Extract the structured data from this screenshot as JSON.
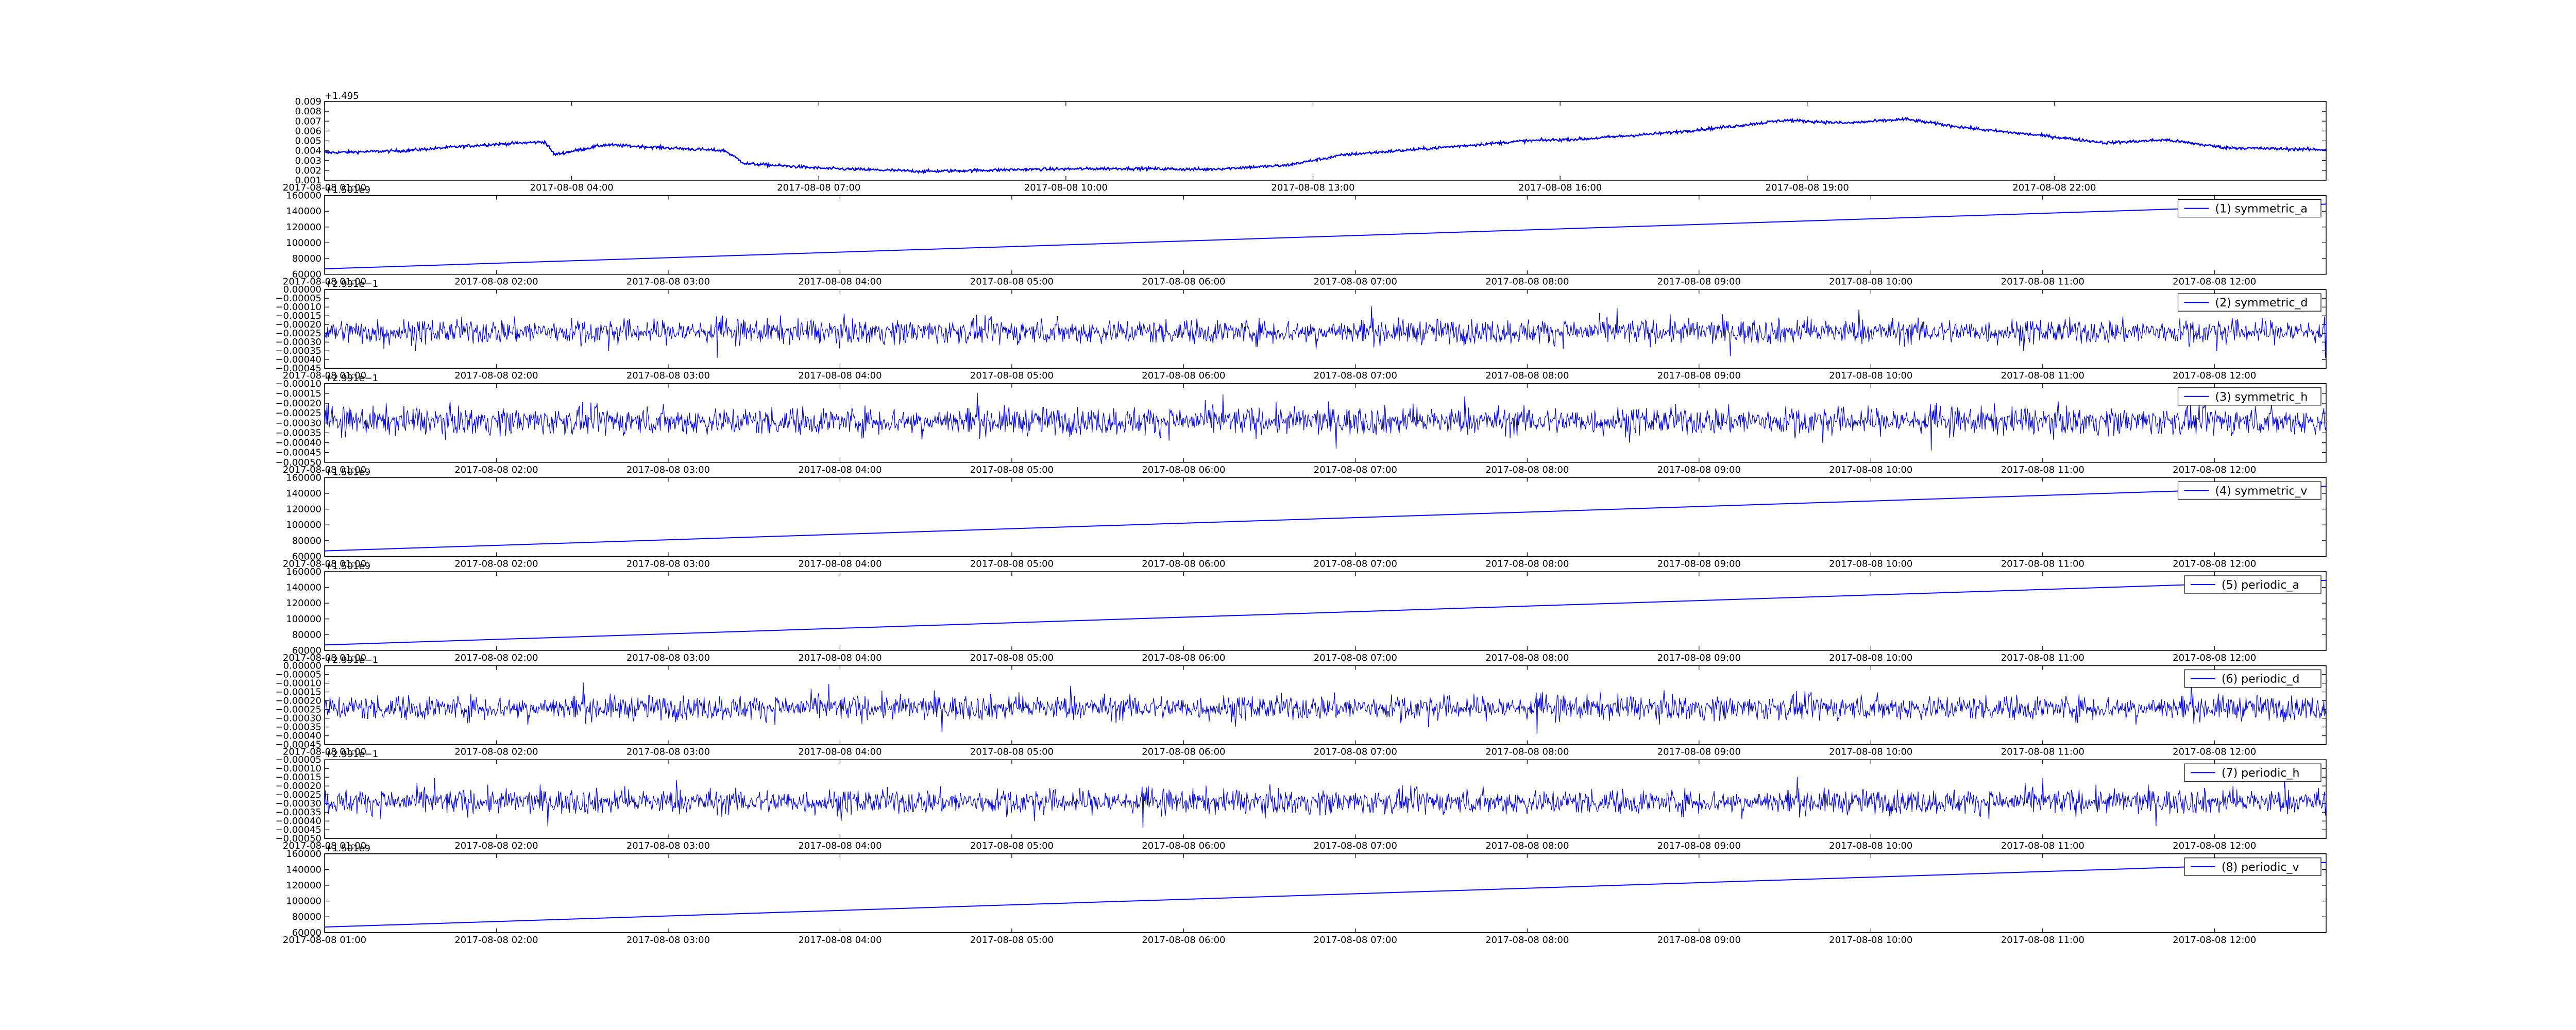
{
  "chart_data": [
    {
      "type": "line",
      "panel": 0,
      "series": [
        {
          "color": "#0000ff",
          "style": "noisy-walk",
          "y_mid": 0.0047,
          "y_spread": 0.0003
        }
      ],
      "ylim": [
        0.001,
        0.009
      ],
      "ytick_labels": [
        "0.001",
        "0.002",
        "0.003",
        "0.004",
        "0.005",
        "0.006",
        "0.007",
        "0.008",
        "0.009"
      ],
      "y_offset": "+1.495",
      "xtick_labels": [
        "2017-08-08 01:00",
        "2017-08-08 04:00",
        "2017-08-08 07:00",
        "2017-08-08 10:00",
        "2017-08-08 13:00",
        "2017-08-08 16:00",
        "2017-08-08 19:00",
        "2017-08-08 22:00"
      ],
      "trend": [
        [
          0,
          0.0038
        ],
        [
          0.04,
          0.004
        ],
        [
          0.08,
          0.0046
        ],
        [
          0.11,
          0.0049
        ],
        [
          0.115,
          0.0036
        ],
        [
          0.14,
          0.0046
        ],
        [
          0.18,
          0.0042
        ],
        [
          0.2,
          0.004
        ],
        [
          0.21,
          0.0027
        ],
        [
          0.25,
          0.0022
        ],
        [
          0.3,
          0.0019
        ],
        [
          0.35,
          0.0021
        ],
        [
          0.4,
          0.0022
        ],
        [
          0.44,
          0.0021
        ],
        [
          0.48,
          0.0025
        ],
        [
          0.51,
          0.0036
        ],
        [
          0.55,
          0.0042
        ],
        [
          0.6,
          0.005
        ],
        [
          0.63,
          0.0052
        ],
        [
          0.67,
          0.0058
        ],
        [
          0.7,
          0.0064
        ],
        [
          0.73,
          0.0071
        ],
        [
          0.76,
          0.0068
        ],
        [
          0.79,
          0.0072
        ],
        [
          0.81,
          0.0066
        ],
        [
          0.83,
          0.0061
        ],
        [
          0.86,
          0.0055
        ],
        [
          0.89,
          0.0048
        ],
        [
          0.92,
          0.0051
        ],
        [
          0.95,
          0.0043
        ],
        [
          1.0,
          0.0041
        ]
      ]
    },
    {
      "type": "line",
      "panel": 1,
      "legend": "(1) symmetric_a",
      "series": [
        {
          "color": "#0000ff",
          "style": "linear",
          "y_start": 67000,
          "y_end": 149000
        }
      ],
      "ylim": [
        60000,
        160000
      ],
      "ytick_labels": [
        "60000",
        "80000",
        "100000",
        "120000",
        "140000",
        "160000"
      ],
      "y_offset": "+1.501e9",
      "xtick_labels": [
        "2017-08-08 01:00",
        "2017-08-08 02:00",
        "2017-08-08 03:00",
        "2017-08-08 04:00",
        "2017-08-08 05:00",
        "2017-08-08 06:00",
        "2017-08-08 07:00",
        "2017-08-08 08:00",
        "2017-08-08 09:00",
        "2017-08-08 10:00",
        "2017-08-08 11:00",
        "2017-08-08 12:00"
      ]
    },
    {
      "type": "line",
      "panel": 2,
      "legend": "(2) symmetric_d",
      "series": [
        {
          "color": "#0000ff",
          "style": "noise",
          "y_mid": -0.00024,
          "y_spread": 5e-05
        }
      ],
      "ylim": [
        -0.00045,
        0.0
      ],
      "ytick_labels": [
        "−0.00045",
        "−0.00040",
        "−0.00035",
        "−0.00030",
        "−0.00025",
        "−0.00020",
        "−0.00015",
        "−0.00010",
        "−0.00005",
        "0.00000"
      ],
      "y_offset": "+2.991e−1",
      "xtick_labels": [
        "2017-08-08 01:00",
        "2017-08-08 02:00",
        "2017-08-08 03:00",
        "2017-08-08 04:00",
        "2017-08-08 05:00",
        "2017-08-08 06:00",
        "2017-08-08 07:00",
        "2017-08-08 08:00",
        "2017-08-08 09:00",
        "2017-08-08 10:00",
        "2017-08-08 11:00",
        "2017-08-08 12:00"
      ]
    },
    {
      "type": "line",
      "panel": 3,
      "legend": "(3) symmetric_h",
      "series": [
        {
          "color": "#0000ff",
          "style": "noise",
          "y_mid": -0.00029,
          "y_spread": 5e-05
        }
      ],
      "ylim": [
        -0.0005,
        -0.0001
      ],
      "ytick_labels": [
        "−0.00050",
        "−0.00045",
        "−0.00040",
        "−0.00035",
        "−0.00030",
        "−0.00025",
        "−0.00020",
        "−0.00015",
        "−0.00010"
      ],
      "y_offset": "+2.991e−1",
      "xtick_labels": [
        "2017-08-08 01:00",
        "2017-08-08 02:00",
        "2017-08-08 03:00",
        "2017-08-08 04:00",
        "2017-08-08 05:00",
        "2017-08-08 06:00",
        "2017-08-08 07:00",
        "2017-08-08 08:00",
        "2017-08-08 09:00",
        "2017-08-08 10:00",
        "2017-08-08 11:00",
        "2017-08-08 12:00"
      ]
    },
    {
      "type": "line",
      "panel": 4,
      "legend": "(4) symmetric_v",
      "series": [
        {
          "color": "#0000ff",
          "style": "linear",
          "y_start": 67000,
          "y_end": 149000
        }
      ],
      "ylim": [
        60000,
        160000
      ],
      "ytick_labels": [
        "60000",
        "80000",
        "100000",
        "120000",
        "140000",
        "160000"
      ],
      "y_offset": "+1.501e9",
      "xtick_labels": [
        "2017-08-08 01:00",
        "2017-08-08 02:00",
        "2017-08-08 03:00",
        "2017-08-08 04:00",
        "2017-08-08 05:00",
        "2017-08-08 06:00",
        "2017-08-08 07:00",
        "2017-08-08 08:00",
        "2017-08-08 09:00",
        "2017-08-08 10:00",
        "2017-08-08 11:00",
        "2017-08-08 12:00"
      ]
    },
    {
      "type": "line",
      "panel": 5,
      "legend": "(5) periodic_a",
      "series": [
        {
          "color": "#0000ff",
          "style": "linear",
          "y_start": 67000,
          "y_end": 149000
        }
      ],
      "ylim": [
        60000,
        160000
      ],
      "ytick_labels": [
        "60000",
        "80000",
        "100000",
        "120000",
        "140000",
        "160000"
      ],
      "y_offset": "+1.501e9",
      "xtick_labels": [
        "2017-08-08 01:00",
        "2017-08-08 02:00",
        "2017-08-08 03:00",
        "2017-08-08 04:00",
        "2017-08-08 05:00",
        "2017-08-08 06:00",
        "2017-08-08 07:00",
        "2017-08-08 08:00",
        "2017-08-08 09:00",
        "2017-08-08 10:00",
        "2017-08-08 11:00",
        "2017-08-08 12:00"
      ]
    },
    {
      "type": "line",
      "panel": 6,
      "legend": "(6) periodic_d",
      "series": [
        {
          "color": "#0000ff",
          "style": "noise",
          "y_mid": -0.00024,
          "y_spread": 5e-05
        }
      ],
      "ylim": [
        -0.00045,
        0.0
      ],
      "ytick_labels": [
        "−0.00045",
        "−0.00040",
        "−0.00035",
        "−0.00030",
        "−0.00025",
        "−0.00020",
        "−0.00015",
        "−0.00010",
        "−0.00005",
        "0.00000"
      ],
      "y_offset": "+2.991e−1",
      "xtick_labels": [
        "2017-08-08 01:00",
        "2017-08-08 02:00",
        "2017-08-08 03:00",
        "2017-08-08 04:00",
        "2017-08-08 05:00",
        "2017-08-08 06:00",
        "2017-08-08 07:00",
        "2017-08-08 08:00",
        "2017-08-08 09:00",
        "2017-08-08 10:00",
        "2017-08-08 11:00",
        "2017-08-08 12:00"
      ]
    },
    {
      "type": "line",
      "panel": 7,
      "legend": "(7) periodic_h",
      "series": [
        {
          "color": "#0000ff",
          "style": "noise",
          "y_mid": -0.00029,
          "y_spread": 5e-05
        }
      ],
      "ylim": [
        -0.0005,
        -5e-05
      ],
      "ytick_labels": [
        "−0.00050",
        "−0.00045",
        "−0.00040",
        "−0.00035",
        "−0.00030",
        "−0.00025",
        "−0.00020",
        "−0.00015",
        "−0.00010",
        "−0.00005"
      ],
      "y_offset": "+2.991e−1",
      "xtick_labels": [
        "2017-08-08 01:00",
        "2017-08-08 02:00",
        "2017-08-08 03:00",
        "2017-08-08 04:00",
        "2017-08-08 05:00",
        "2017-08-08 06:00",
        "2017-08-08 07:00",
        "2017-08-08 08:00",
        "2017-08-08 09:00",
        "2017-08-08 10:00",
        "2017-08-08 11:00",
        "2017-08-08 12:00"
      ]
    },
    {
      "type": "line",
      "panel": 8,
      "legend": "(8) periodic_v",
      "series": [
        {
          "color": "#0000ff",
          "style": "linear",
          "y_start": 67000,
          "y_end": 149000
        }
      ],
      "ylim": [
        60000,
        160000
      ],
      "ytick_labels": [
        "60000",
        "80000",
        "100000",
        "120000",
        "140000",
        "160000"
      ],
      "y_offset": "+1.501e9",
      "xtick_labels": [
        "2017-08-08 01:00",
        "2017-08-08 02:00",
        "2017-08-08 03:00",
        "2017-08-08 04:00",
        "2017-08-08 05:00",
        "2017-08-08 06:00",
        "2017-08-08 07:00",
        "2017-08-08 08:00",
        "2017-08-08 09:00",
        "2017-08-08 10:00",
        "2017-08-08 11:00",
        "2017-08-08 12:00"
      ]
    }
  ]
}
